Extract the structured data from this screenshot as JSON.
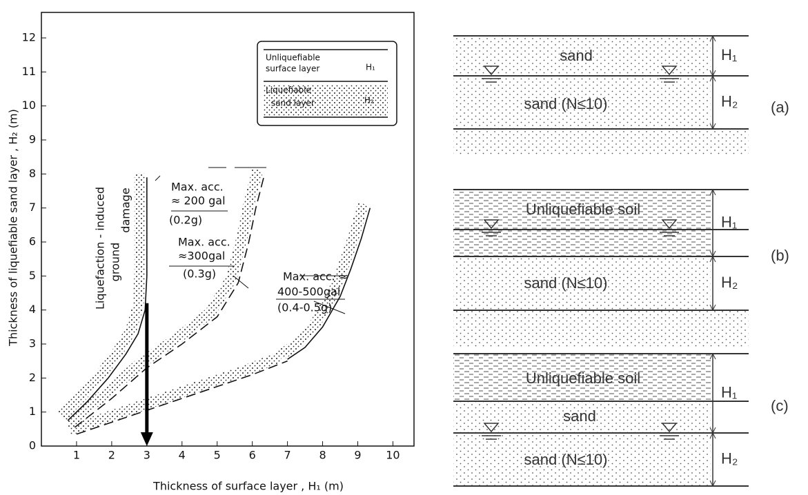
{
  "chart_data": {
    "type": "line",
    "xlabel": "Thickness  of  surface  layer  ,  H₁    (m)",
    "ylabel": "Thickness  of  liquefiable  sand  layer  ,  H₂   (m)",
    "xlim": [
      0,
      10.6
    ],
    "ylim": [
      0,
      12.75
    ],
    "xticks": [
      1,
      2,
      3,
      4,
      5,
      6,
      7,
      8,
      9,
      10
    ],
    "yticks": [
      0,
      1,
      2,
      3,
      4,
      5,
      6,
      7,
      8,
      9,
      10,
      11,
      12
    ],
    "series": [
      {
        "color": "#111111",
        "dash": false,
        "x": [
          0.75,
          1.3,
          1.9,
          2.4,
          2.75,
          2.95,
          3.0,
          3.0
        ],
        "values": [
          0.75,
          1.3,
          2.0,
          2.7,
          3.3,
          4.0,
          5.0,
          7.9
        ]
      },
      {
        "color": "#111111",
        "dash": true,
        "x": [
          0.95,
          2,
          3,
          4,
          5,
          5.6,
          5.9,
          6.1,
          6.35
        ],
        "values": [
          0.55,
          1.4,
          2.3,
          3.0,
          3.8,
          4.8,
          6.0,
          7.0,
          8.0
        ]
      },
      {
        "color": "#111111",
        "dash": true,
        "x": [
          1.0,
          2,
          3,
          4,
          5,
          6,
          7
        ],
        "values": [
          0.35,
          0.7,
          1.05,
          1.4,
          1.75,
          2.1,
          2.5
        ]
      },
      {
        "color": "#111111",
        "dash": false,
        "x": [
          7,
          7.5,
          8,
          8.5,
          8.8,
          9.1,
          9.35
        ],
        "values": [
          2.55,
          2.9,
          3.5,
          4.4,
          5.2,
          6.1,
          7.0
        ]
      }
    ],
    "arrow": {
      "x": 3,
      "y": [
        4.2,
        0
      ]
    },
    "annotations": [
      "Max. acc.",
      "≈ 200 gal",
      "(0.2g)",
      "Max. acc.",
      "≈300gal",
      "(0.3g)",
      "Max. acc. ≈",
      "400-500gal",
      "(0.4-0.5g)",
      "Liquefaction - induced",
      "ground",
      "damage"
    ],
    "inset": [
      "Unliquefiable",
      "surface layer",
      "H₁",
      "Liquefiable",
      "sand layer",
      "H₂"
    ]
  },
  "diagrams": [
    {
      "label": "(a)",
      "texts": [
        "sand",
        "sand  (N≤10)"
      ],
      "h": [
        "H₁",
        "H₂"
      ]
    },
    {
      "label": "(b)",
      "texts": [
        "Unliquefiable soil",
        "sand  (N≤10)"
      ],
      "h": [
        "H₁",
        "H₂"
      ]
    },
    {
      "label": "(c)",
      "texts": [
        "Unliquefiable soil",
        "sand",
        "sand  (N≤10)"
      ],
      "h": [
        "H₁",
        "H₂"
      ]
    }
  ]
}
